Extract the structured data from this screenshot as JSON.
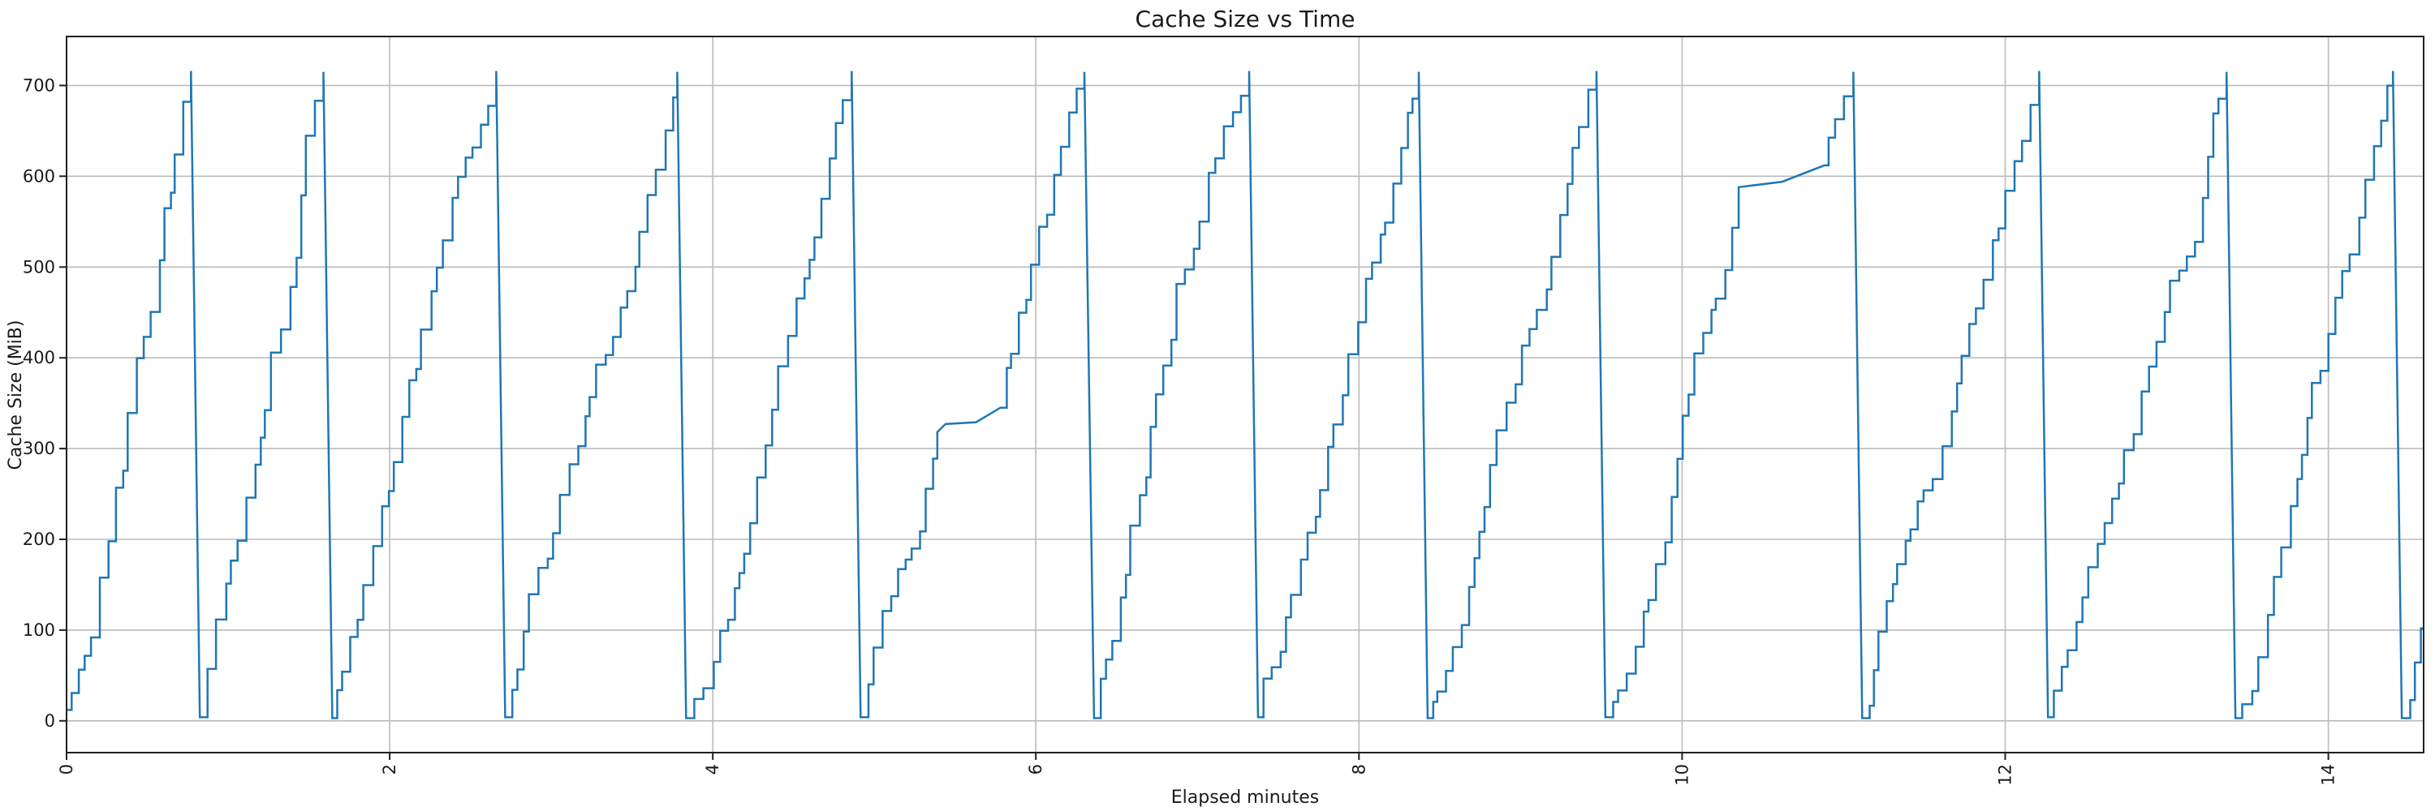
{
  "page": {
    "background": "#ffffff",
    "description": "Matplotlib-style line chart of cache size over time, sawtooth staircase pattern"
  },
  "chart_data": {
    "type": "line",
    "title": "Cache Size vs Time",
    "xlabel": "Elapsed minutes",
    "ylabel": "Cache Size (MiB)",
    "xlim": [
      0,
      14.59
    ],
    "ylim": [
      -35,
      754
    ],
    "xticks": [
      0,
      2,
      4,
      6,
      8,
      10,
      12,
      14
    ],
    "xtick_labels": [
      "0",
      "2",
      "4",
      "6",
      "8",
      "10",
      "12",
      "14"
    ],
    "yticks": [
      0,
      100,
      200,
      300,
      400,
      500,
      600,
      700
    ],
    "ytick_labels": [
      "0",
      "100",
      "200",
      "300",
      "400",
      "500",
      "600",
      "700"
    ],
    "grid": true,
    "legend": "none",
    "colors": {
      "line": "#1f77b4",
      "grid": "#bbbbbb",
      "spine": "#202020",
      "text": "#1a1a1a"
    },
    "pattern_summary": "Cache grows in irregular steps (~700 MiB/min) to ~715 MiB then flushes abruptly to ~0; 13 full sawtooth cycles plus a partial 14th; growth pause at ~327 MiB during cycle 6 (min 5.4-5.8) and at ~590-612 MiB during cycle 10 (min 10.35-10.9)",
    "start": {
      "t": 0,
      "v": 12
    },
    "segments": [
      [
        "stair",
        0.77,
        716
      ],
      [
        "drop",
        0.825,
        4
      ],
      [
        "stair",
        1.59,
        715
      ],
      [
        "drop",
        1.645,
        3
      ],
      [
        "stair",
        2.66,
        716
      ],
      [
        "drop",
        2.715,
        4
      ],
      [
        "stair",
        3.78,
        715
      ],
      [
        "drop",
        3.835,
        3
      ],
      [
        "stair",
        4.86,
        716
      ],
      [
        "drop",
        4.915,
        4
      ],
      [
        "stair",
        5.39,
        318
      ],
      [
        "ramp",
        5.44,
        327
      ],
      [
        "ramp",
        5.63,
        329
      ],
      [
        "ramp",
        5.78,
        345
      ],
      [
        "stair",
        6.3,
        715
      ],
      [
        "drop",
        6.36,
        3
      ],
      [
        "stair",
        7.32,
        716
      ],
      [
        "drop",
        7.375,
        4
      ],
      [
        "stair",
        8.37,
        715
      ],
      [
        "drop",
        8.425,
        3
      ],
      [
        "stair",
        9.47,
        716
      ],
      [
        "drop",
        9.525,
        4
      ],
      [
        "stair",
        10.35,
        588
      ],
      [
        "ramp",
        10.62,
        594
      ],
      [
        "ramp",
        10.88,
        612
      ],
      [
        "stair",
        11.06,
        715
      ],
      [
        "drop",
        11.115,
        3
      ],
      [
        "stair",
        12.21,
        716
      ],
      [
        "drop",
        12.265,
        4
      ],
      [
        "stair",
        13.37,
        715
      ],
      [
        "drop",
        13.425,
        3
      ],
      [
        "stair",
        14.4,
        716
      ],
      [
        "drop",
        14.455,
        3
      ],
      [
        "stair",
        14.62,
        120
      ]
    ],
    "step": {
      "dt": 0.044,
      "seed": 42,
      "tread_min": 0.55,
      "tread_var": 0.9,
      "riser_min": 0.35,
      "riser_var": 1.3
    }
  }
}
